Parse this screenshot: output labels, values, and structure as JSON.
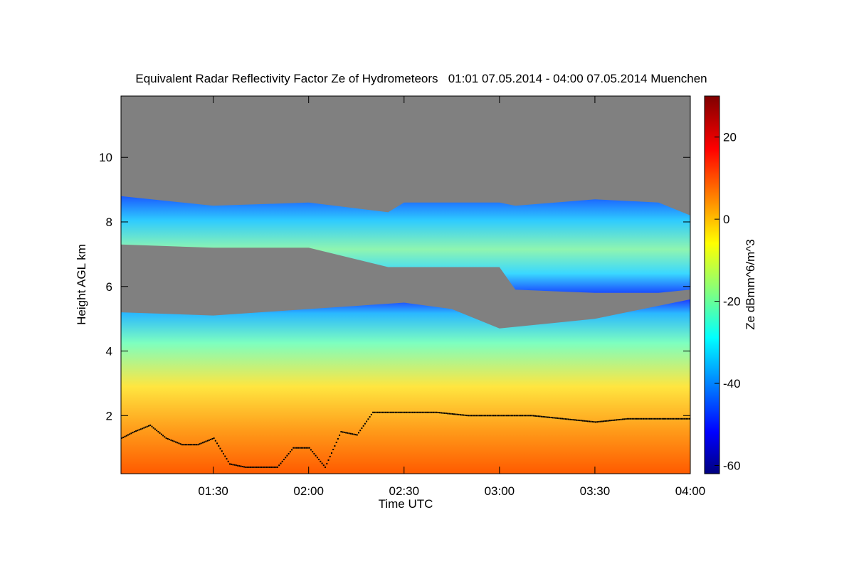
{
  "chart_data": {
    "type": "heatmap",
    "title": "Equivalent Radar Reflectivity Factor Ze of Hydrometeors   01:01 07.05.2014 - 04:00 07.05.2014 Muenchen",
    "xlabel": "Time UTC",
    "ylabel": "Height AGL km",
    "xlim": [
      "01:01",
      "04:00"
    ],
    "ylim": [
      0.2,
      11.9
    ],
    "x_ticks": [
      "01:30",
      "02:00",
      "02:30",
      "03:00",
      "03:30",
      "04:00"
    ],
    "y_ticks": [
      2,
      4,
      6,
      8,
      10
    ],
    "colorbar": {
      "label": "Ze dBmm^6/m^3",
      "range": [
        -62,
        30
      ],
      "ticks": [
        -60,
        -40,
        -20,
        0,
        20
      ],
      "colormap": "jet"
    },
    "no_data_color": "#808080",
    "layers": [
      {
        "name": "upper cloud layer",
        "ze_typical": -28,
        "times": [
          "01:01",
          "01:30",
          "02:00",
          "02:25",
          "02:30",
          "03:00",
          "03:05",
          "03:30",
          "03:50",
          "04:00"
        ],
        "top_km": [
          8.8,
          8.5,
          8.6,
          8.3,
          8.6,
          8.6,
          8.5,
          8.7,
          8.6,
          8.2
        ],
        "base_km": [
          7.3,
          7.2,
          7.2,
          6.6,
          6.6,
          6.6,
          5.9,
          5.8,
          5.8,
          5.9
        ]
      },
      {
        "name": "lower precipitation layer",
        "ze_typical": 5,
        "times": [
          "01:01",
          "01:30",
          "02:00",
          "02:30",
          "02:45",
          "03:00",
          "03:30",
          "04:00"
        ],
        "top_km": [
          5.2,
          5.1,
          5.3,
          5.5,
          5.3,
          4.7,
          5.0,
          5.6
        ]
      }
    ],
    "cloud_base_dots": {
      "times": [
        "01:01",
        "01:05",
        "01:10",
        "01:15",
        "01:20",
        "01:25",
        "01:30",
        "01:35",
        "01:40",
        "01:50",
        "01:55",
        "02:00",
        "02:05",
        "02:10",
        "02:15",
        "02:20",
        "02:30",
        "02:40",
        "02:50",
        "03:00",
        "03:10",
        "03:20",
        "03:30",
        "03:40",
        "03:50",
        "04:00"
      ],
      "height_km": [
        1.3,
        1.5,
        1.7,
        1.3,
        1.1,
        1.1,
        1.3,
        0.5,
        0.4,
        0.4,
        1.0,
        1.0,
        0.4,
        1.5,
        1.4,
        2.1,
        2.1,
        2.1,
        2.0,
        2.0,
        2.0,
        1.9,
        1.8,
        1.9,
        1.9,
        1.9
      ]
    }
  }
}
